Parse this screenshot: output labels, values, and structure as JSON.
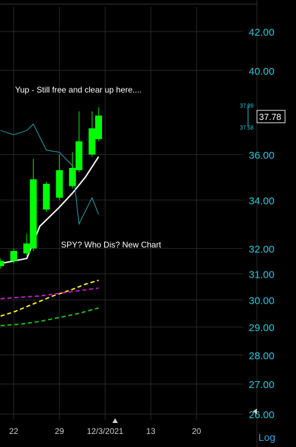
{
  "chart_data": {
    "type": "candlestick",
    "scale": "log",
    "ylim": [
      25.9,
      43.4
    ],
    "yticks": [
      "42.00",
      "40.00",
      "36.00",
      "34.00",
      "32.00",
      "31.00",
      "30.00",
      "29.00",
      "28.00",
      "27.00",
      "26.00"
    ],
    "ytick_values": [
      42,
      40,
      36,
      34,
      32,
      31,
      30,
      29,
      28,
      27,
      26
    ],
    "xticks": [
      "22",
      "29",
      "12/3/2021",
      "13",
      "20"
    ],
    "xtick_days": [
      0,
      7,
      14,
      21,
      28
    ],
    "current_price": "37.78",
    "high_marker": "37.99",
    "low_marker": "37.58",
    "scale_toggle": "Log",
    "annotations": [
      "Yup - Still free and clear up here....",
      "SPY? Who Dis? New Chart"
    ],
    "candles": [
      {
        "day": -2,
        "open": 31.3,
        "high": 31.6,
        "low": 31.2,
        "close": 31.5
      },
      {
        "day": 0,
        "open": 31.5,
        "high": 32.0,
        "low": 31.4,
        "close": 31.9
      },
      {
        "day": 2,
        "open": 31.8,
        "high": 32.6,
        "low": 31.7,
        "close": 32.2
      },
      {
        "day": 3,
        "open": 32.0,
        "high": 35.8,
        "low": 31.9,
        "close": 34.9
      },
      {
        "day": 5,
        "open": 33.6,
        "high": 34.8,
        "low": 33.5,
        "close": 34.7
      },
      {
        "day": 7,
        "open": 34.1,
        "high": 36.0,
        "low": 34.0,
        "close": 35.3
      },
      {
        "day": 9,
        "open": 34.6,
        "high": 36.1,
        "low": 34.5,
        "close": 35.4
      },
      {
        "day": 10,
        "open": 35.3,
        "high": 38.0,
        "low": 35.2,
        "close": 36.6
      },
      {
        "day": 12,
        "open": 36.0,
        "high": 38.0,
        "low": 35.9,
        "close": 37.2
      },
      {
        "day": 13,
        "open": 36.7,
        "high": 38.2,
        "low": 36.6,
        "close": 37.8
      }
    ],
    "series": [
      {
        "color": "#ffffff",
        "style": "solid",
        "x": [
          -2,
          0,
          2,
          4,
          7,
          9,
          11,
          13
        ],
        "y": [
          31.4,
          31.5,
          31.6,
          32.9,
          33.7,
          34.3,
          35.0,
          35.9
        ]
      },
      {
        "color": "#ffee33",
        "style": "dashed",
        "x": [
          -2,
          0,
          3,
          6,
          9,
          11,
          13
        ],
        "y": [
          29.4,
          29.55,
          29.85,
          30.15,
          30.4,
          30.6,
          30.75
        ]
      },
      {
        "color": "#c020c0",
        "style": "dashed",
        "x": [
          -2,
          1,
          4,
          7,
          10,
          13
        ],
        "y": [
          30.05,
          30.1,
          30.15,
          30.25,
          30.35,
          30.45
        ]
      },
      {
        "color": "#22bb22",
        "style": "dashed",
        "x": [
          -2,
          1,
          4,
          7,
          10,
          13
        ],
        "y": [
          29.05,
          29.1,
          29.2,
          29.35,
          29.5,
          29.7
        ]
      },
      {
        "color": "#2aa8b4",
        "style": "solid",
        "x": [
          -2,
          0,
          2,
          3,
          5,
          7,
          9,
          10,
          12,
          13
        ],
        "y": [
          37.1,
          36.9,
          37.1,
          37.4,
          36.2,
          36.1,
          35.5,
          33.0,
          34.1,
          33.4
        ]
      }
    ]
  }
}
